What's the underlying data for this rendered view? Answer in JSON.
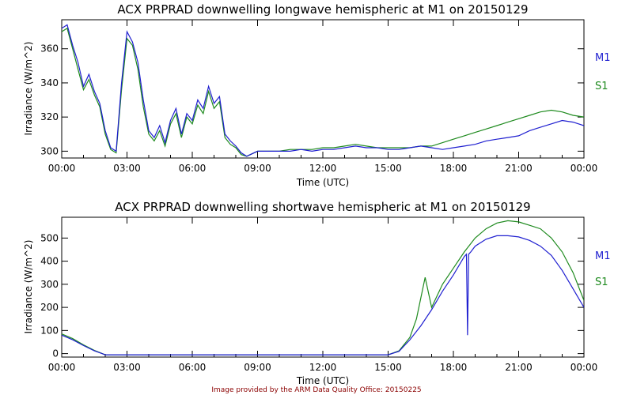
{
  "credit": "Image provided by the ARM Data Quality Office: 20150225",
  "colors": {
    "M1": "#1f1fd0",
    "S1": "#1e8a1e",
    "axis": "#000000",
    "credit": "#8b0000"
  },
  "chart_data": [
    {
      "type": "line",
      "title": "ACX PRPRAD downwelling longwave hemispheric at M1 on 20150129",
      "xlabel": "Time (UTC)",
      "ylabel": "Irradiance (W/m^2)",
      "xlim": [
        0,
        24
      ],
      "ylim": [
        296,
        377
      ],
      "x_ticks": [
        "00:00",
        "03:00",
        "06:00",
        "09:00",
        "12:00",
        "15:00",
        "18:00",
        "21:00",
        "00:00"
      ],
      "y_ticks": [
        300,
        320,
        340,
        360
      ],
      "legend": [
        "M1",
        "S1"
      ],
      "series": [
        {
          "name": "M1",
          "color": "#1f1fd0",
          "x": [
            0,
            0.25,
            0.5,
            0.75,
            1.0,
            1.25,
            1.5,
            1.75,
            2.0,
            2.25,
            2.5,
            2.75,
            3.0,
            3.25,
            3.5,
            3.75,
            4.0,
            4.25,
            4.5,
            4.75,
            5.0,
            5.25,
            5.5,
            5.75,
            6.0,
            6.25,
            6.5,
            6.75,
            7.0,
            7.25,
            7.5,
            7.75,
            8.0,
            8.25,
            8.5,
            9.0,
            9.5,
            10,
            10.5,
            11,
            11.5,
            12,
            12.5,
            13,
            13.5,
            14,
            14.5,
            15,
            15.5,
            16,
            16.5,
            17,
            17.5,
            18,
            18.5,
            19,
            19.5,
            20,
            20.5,
            21,
            21.5,
            22,
            22.5,
            23,
            23.5,
            24
          ],
          "y": [
            372,
            374,
            362,
            352,
            338,
            345,
            335,
            328,
            312,
            302,
            300,
            340,
            370,
            364,
            352,
            330,
            312,
            308,
            315,
            305,
            318,
            325,
            310,
            322,
            318,
            330,
            325,
            338,
            328,
            332,
            310,
            306,
            303,
            299,
            297,
            300,
            300,
            300,
            300,
            301,
            300,
            301,
            301,
            302,
            303,
            302,
            302,
            301,
            301,
            302,
            303,
            302,
            301,
            302,
            303,
            304,
            306,
            307,
            308,
            309,
            312,
            314,
            316,
            318,
            317,
            315
          ]
        },
        {
          "name": "S1",
          "color": "#1e8a1e",
          "x": [
            0,
            0.25,
            0.5,
            0.75,
            1.0,
            1.25,
            1.5,
            1.75,
            2.0,
            2.25,
            2.5,
            2.75,
            3.0,
            3.25,
            3.5,
            3.75,
            4.0,
            4.25,
            4.5,
            4.75,
            5.0,
            5.25,
            5.5,
            5.75,
            6.0,
            6.25,
            6.5,
            6.75,
            7.0,
            7.25,
            7.5,
            7.75,
            8.0,
            8.25,
            8.5,
            9.0,
            9.5,
            10,
            10.5,
            11,
            11.5,
            12,
            12.5,
            13,
            13.5,
            14,
            14.5,
            15,
            15.5,
            16,
            16.5,
            17,
            17.5,
            18,
            18.5,
            19,
            19.5,
            20,
            20.5,
            21,
            21.5,
            22,
            22.5,
            23,
            23.5,
            24
          ],
          "y": [
            370,
            372,
            360,
            348,
            336,
            342,
            333,
            326,
            310,
            301,
            299,
            336,
            366,
            362,
            348,
            326,
            310,
            306,
            312,
            303,
            316,
            322,
            308,
            320,
            316,
            327,
            322,
            335,
            325,
            329,
            308,
            304,
            302,
            298,
            297,
            300,
            300,
            300,
            301,
            301,
            301,
            302,
            302,
            303,
            304,
            303,
            302,
            302,
            302,
            302,
            303,
            303,
            305,
            307,
            309,
            311,
            313,
            315,
            317,
            319,
            321,
            323,
            324,
            323,
            321,
            320
          ]
        }
      ]
    },
    {
      "type": "line",
      "title": "ACX PRPRAD downwelling shortwave hemispheric at M1 on 20150129",
      "xlabel": "Time (UTC)",
      "ylabel": "Irradiance (W/m^2)",
      "xlim": [
        0,
        24
      ],
      "ylim": [
        -15,
        590
      ],
      "x_ticks": [
        "00:00",
        "03:00",
        "06:00",
        "09:00",
        "12:00",
        "15:00",
        "18:00",
        "21:00",
        "00:00"
      ],
      "y_ticks": [
        0,
        100,
        200,
        300,
        400,
        500
      ],
      "legend": [
        "M1",
        "S1"
      ],
      "series": [
        {
          "name": "M1",
          "color": "#1f1fd0",
          "x": [
            0,
            0.5,
            1.0,
            1.5,
            2.0,
            3,
            4,
            5,
            6,
            7,
            8,
            9,
            10,
            11,
            12,
            13,
            14,
            15,
            15.5,
            16.0,
            16.5,
            17.0,
            17.5,
            18.0,
            18.5,
            18.6,
            18.65,
            18.7,
            18.8,
            19.0,
            19.5,
            20.0,
            20.5,
            21.0,
            21.5,
            22.0,
            22.5,
            23.0,
            23.5,
            24
          ],
          "y": [
            80,
            60,
            35,
            12,
            -5,
            -5,
            -5,
            -5,
            -5,
            -5,
            -5,
            -5,
            -5,
            -5,
            -5,
            -5,
            -5,
            -5,
            10,
            60,
            120,
            190,
            270,
            340,
            420,
            430,
            80,
            430,
            440,
            465,
            495,
            510,
            510,
            505,
            490,
            465,
            425,
            360,
            280,
            200
          ]
        },
        {
          "name": "S1",
          "color": "#1e8a1e",
          "x": [
            0,
            0.5,
            1.0,
            1.5,
            2.0,
            3,
            4,
            5,
            6,
            7,
            8,
            9,
            10,
            11,
            12,
            13,
            14,
            15,
            15.5,
            16.0,
            16.3,
            16.5,
            16.7,
            17.0,
            17.5,
            18.0,
            18.5,
            19.0,
            19.5,
            20.0,
            20.5,
            21.0,
            21.5,
            22.0,
            22.5,
            23.0,
            23.5,
            24
          ],
          "y": [
            85,
            65,
            38,
            14,
            -5,
            -5,
            -5,
            -5,
            -5,
            -5,
            -5,
            -5,
            -5,
            -5,
            -5,
            -5,
            -5,
            -5,
            12,
            70,
            150,
            240,
            330,
            200,
            300,
            370,
            440,
            500,
            540,
            565,
            575,
            570,
            555,
            540,
            500,
            440,
            350,
            230
          ]
        }
      ]
    }
  ]
}
